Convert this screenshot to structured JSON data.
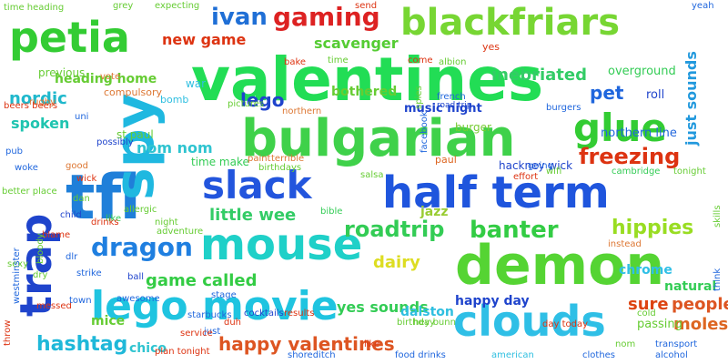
{
  "cloud": {
    "words": [
      {
        "text": "valentines",
        "color": "#22dd55"
      },
      {
        "text": "bulgarian",
        "color": "#3fd14a"
      },
      {
        "text": "half term",
        "color": "#1f55dd"
      },
      {
        "text": "demon",
        "color": "#55d433"
      },
      {
        "text": "tfl",
        "color": "#1f7fd9"
      },
      {
        "text": "trap",
        "color": "#1f44cc"
      },
      {
        "text": "spy",
        "color": "#1fb8e0"
      },
      {
        "text": "lego movie",
        "color": "#1fc4e0"
      },
      {
        "text": "clouds",
        "color": "#2fbfe6"
      },
      {
        "text": "mouse",
        "color": "#1fd0c8"
      },
      {
        "text": "petia",
        "color": "#33cc33"
      },
      {
        "text": "blackfriars",
        "color": "#77d633"
      },
      {
        "text": "slack",
        "color": "#2255dd"
      },
      {
        "text": "glue",
        "color": "#33cc33"
      },
      {
        "text": "gaming",
        "color": "#dd2222"
      },
      {
        "text": "ivan",
        "color": "#1f6fd6"
      },
      {
        "text": "dragon",
        "color": "#1f7fe0"
      },
      {
        "text": "banter",
        "color": "#33cc44"
      },
      {
        "text": "roadtrip",
        "color": "#33cc55"
      },
      {
        "text": "freezing",
        "color": "#dd3311"
      },
      {
        "text": "hippies",
        "color": "#99dd22"
      },
      {
        "text": "hashtag",
        "color": "#1fb8d9"
      },
      {
        "text": "happy valentines",
        "color": "#dd5522"
      },
      {
        "text": "little wee",
        "color": "#33cc66"
      },
      {
        "text": "game called",
        "color": "#33cc44"
      },
      {
        "text": "dairy",
        "color": "#dddd22"
      },
      {
        "text": "yes sounds",
        "color": "#33cc55"
      },
      {
        "text": "sure",
        "color": "#dd4411"
      },
      {
        "text": "people",
        "color": "#dd5522"
      },
      {
        "text": "moles",
        "color": "#dd6622"
      },
      {
        "text": "lego",
        "color": "#1f44cc"
      },
      {
        "text": "nordic",
        "color": "#1fb8cc"
      },
      {
        "text": "spoken",
        "color": "#1fc4b0"
      },
      {
        "text": "pet",
        "color": "#1f66dd"
      },
      {
        "text": "inebriated",
        "color": "#33cc66"
      },
      {
        "text": "scavenger",
        "color": "#55cc33"
      },
      {
        "text": "new game",
        "color": "#dd3311"
      },
      {
        "text": "just sounds",
        "color": "#2299dd"
      },
      {
        "text": "nom nom",
        "color": "#2fc4d0"
      },
      {
        "text": "happy day",
        "color": "#1f44cc"
      },
      {
        "text": "mice",
        "color": "#66cc33"
      },
      {
        "text": "chico",
        "color": "#2fc4d0"
      },
      {
        "text": "dalston",
        "color": "#2fbfe0"
      },
      {
        "text": "natural",
        "color": "#33cc55"
      },
      {
        "text": "chrome",
        "color": "#2fbfe6"
      },
      {
        "text": "jazz",
        "color": "#99cc33"
      },
      {
        "text": "music night",
        "color": "#1f44cc"
      },
      {
        "text": "bothered",
        "color": "#66cc33"
      },
      {
        "text": "heading home",
        "color": "#66cc33"
      },
      {
        "text": "previous",
        "color": "#66cc33"
      },
      {
        "text": "northern line",
        "color": "#1f66dd"
      },
      {
        "text": "overground",
        "color": "#33cc55"
      },
      {
        "text": "hackney wick",
        "color": "#1f44cc"
      },
      {
        "text": "time make",
        "color": "#33cc55"
      },
      {
        "text": "burger",
        "color": "#77cc33"
      },
      {
        "text": "passing",
        "color": "#66cc33"
      },
      {
        "text": "roll",
        "color": "#1f44cc"
      },
      {
        "text": "time heading",
        "color": "#66cc33"
      },
      {
        "text": "grey",
        "color": "#66cc33"
      },
      {
        "text": "expecting",
        "color": "#66cc33"
      },
      {
        "text": "yeah",
        "color": "#1f66dd"
      },
      {
        "text": "war",
        "color": "#2fbfe0"
      },
      {
        "text": "bomb",
        "color": "#2fbfe0"
      },
      {
        "text": "french",
        "color": "#1f66dd"
      },
      {
        "text": "road trip",
        "color": "#1f44cc"
      },
      {
        "text": "st paul",
        "color": "#66cc33"
      },
      {
        "text": "paint",
        "color": "#dd7733"
      },
      {
        "text": "terrible",
        "color": "#dd7733"
      },
      {
        "text": "birthdays",
        "color": "#66cc33"
      },
      {
        "text": "paul",
        "color": "#dd6622"
      },
      {
        "text": "tonight",
        "color": "#66cc33"
      },
      {
        "text": "cambridge",
        "color": "#33cc55"
      },
      {
        "text": "yes",
        "color": "#dd3311"
      },
      {
        "text": "pictures",
        "color": "#66cc33"
      },
      {
        "text": "compulsory",
        "color": "#dd7733"
      },
      {
        "text": "rugby",
        "color": "#dd7733"
      },
      {
        "text": "salsa",
        "color": "#66cc33"
      },
      {
        "text": "bible",
        "color": "#33cc55"
      },
      {
        "text": "results",
        "color": "#dd3311"
      },
      {
        "text": "starbucks",
        "color": "#1f66dd"
      },
      {
        "text": "shoreditch",
        "color": "#1f66dd"
      },
      {
        "text": "food drinks",
        "color": "#1f66dd"
      },
      {
        "text": "american",
        "color": "#2fbfe0"
      },
      {
        "text": "transport",
        "color": "#1f66dd"
      },
      {
        "text": "nom",
        "color": "#66cc33"
      },
      {
        "text": "wick",
        "color": "#dd3311"
      },
      {
        "text": "pub",
        "color": "#1f66dd"
      },
      {
        "text": "blame",
        "color": "#dd3311"
      },
      {
        "text": "child",
        "color": "#1f44cc"
      },
      {
        "text": "dlr",
        "color": "#1f66dd"
      },
      {
        "text": "strike",
        "color": "#1f66dd"
      },
      {
        "text": "ball",
        "color": "#1f44cc"
      },
      {
        "text": "stage",
        "color": "#1f66dd"
      },
      {
        "text": "messed",
        "color": "#dd3311"
      },
      {
        "text": "dry",
        "color": "#66cc33"
      },
      {
        "text": "woke",
        "color": "#1f66dd"
      },
      {
        "text": "possibly",
        "color": "#1f44cc"
      },
      {
        "text": "good",
        "color": "#dd7733"
      },
      {
        "text": "night",
        "color": "#66cc33"
      },
      {
        "text": "like",
        "color": "#33cc55"
      },
      {
        "text": "allergic",
        "color": "#66cc33"
      },
      {
        "text": "beers beers",
        "color": "#dd3311"
      },
      {
        "text": "time",
        "color": "#66cc33"
      },
      {
        "text": "burgers",
        "color": "#1f66dd"
      },
      {
        "text": "facebook",
        "color": "#1f66dd"
      },
      {
        "text": "spies",
        "color": "#66cc33"
      },
      {
        "text": "northern",
        "color": "#dd7733"
      },
      {
        "text": "bloody",
        "color": "#66cc33"
      },
      {
        "text": "sexy",
        "color": "#66cc33"
      },
      {
        "text": "westminster",
        "color": "#1f66dd"
      },
      {
        "text": "throw",
        "color": "#dd3311"
      },
      {
        "text": "better place",
        "color": "#66cc33"
      },
      {
        "text": "dan",
        "color": "#66cc33"
      },
      {
        "text": "drinks",
        "color": "#dd3311"
      },
      {
        "text": "awesome",
        "color": "#1f66dd"
      },
      {
        "text": "cocktails",
        "color": "#1f44cc"
      },
      {
        "text": "birthday",
        "color": "#66cc33"
      },
      {
        "text": "day today",
        "color": "#dd3311"
      },
      {
        "text": "hey bunn",
        "color": "#66cc33"
      },
      {
        "text": "going",
        "color": "#1f66dd"
      },
      {
        "text": "effort",
        "color": "#dd3311"
      },
      {
        "text": "adventure",
        "color": "#66cc33"
      },
      {
        "text": "albion",
        "color": "#66cc33"
      },
      {
        "text": "send",
        "color": "#dd3311"
      },
      {
        "text": "come",
        "color": "#dd3311"
      },
      {
        "text": "bake",
        "color": "#dd3311"
      },
      {
        "text": "just",
        "color": "#1f66dd"
      },
      {
        "text": "vote",
        "color": "#dd7733"
      },
      {
        "text": "uni",
        "color": "#1f66dd"
      },
      {
        "text": "duh",
        "color": "#dd3311"
      },
      {
        "text": "service",
        "color": "#dd3311"
      },
      {
        "text": "plan tonight",
        "color": "#dd3311"
      },
      {
        "text": "town",
        "color": "#1f66dd"
      },
      {
        "text": "cold",
        "color": "#66cc33"
      },
      {
        "text": "skills",
        "color": "#66cc33"
      },
      {
        "text": "think",
        "color": "#1f66dd"
      },
      {
        "text": "instead",
        "color": "#dd7733"
      },
      {
        "text": "wifi",
        "color": "#66cc33"
      },
      {
        "text": "clothes",
        "color": "#1f66dd"
      },
      {
        "text": "alcohol",
        "color": "#1f66dd"
      },
      {
        "text": "like",
        "color": "#dd3311"
      }
    ]
  }
}
